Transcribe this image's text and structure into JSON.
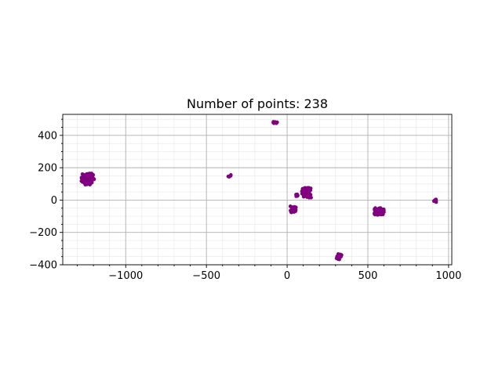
{
  "chart_data": {
    "type": "scatter",
    "title": "Number of points: 238",
    "xlabel": "",
    "ylabel": "",
    "xlim": [
      -1390,
      1020
    ],
    "ylim": [
      -400,
      530
    ],
    "x_ticks": [
      -1000,
      -500,
      0,
      500,
      1000
    ],
    "x_tick_labels": [
      "−1000",
      "−500",
      "0",
      "500",
      "1000"
    ],
    "y_ticks": [
      -400,
      -200,
      0,
      200,
      400
    ],
    "y_tick_labels": [
      "−400",
      "−200",
      "0",
      "200",
      "400"
    ],
    "grid": "major and minor",
    "legend": "none",
    "point_color": "#800080",
    "point_count": 238,
    "clusters": [
      {
        "center": [
          -1235,
          130
        ],
        "spread": [
          40,
          35
        ],
        "count": 70
      },
      {
        "center": [
          -75,
          478
        ],
        "spread": [
          14,
          8
        ],
        "count": 8
      },
      {
        "center": [
          -355,
          152
        ],
        "spread": [
          12,
          8
        ],
        "count": 6
      },
      {
        "center": [
          120,
          45
        ],
        "spread": [
          30,
          32
        ],
        "count": 42
      },
      {
        "center": [
          40,
          -58
        ],
        "spread": [
          22,
          20
        ],
        "count": 20
      },
      {
        "center": [
          570,
          -70
        ],
        "spread": [
          30,
          22
        ],
        "count": 55
      },
      {
        "center": [
          322,
          -350
        ],
        "spread": [
          18,
          18
        ],
        "count": 15
      },
      {
        "center": [
          912,
          -5
        ],
        "spread": [
          12,
          10
        ],
        "count": 6
      },
      {
        "center": [
          60,
          30
        ],
        "spread": [
          6,
          6
        ],
        "count": 16
      }
    ]
  }
}
